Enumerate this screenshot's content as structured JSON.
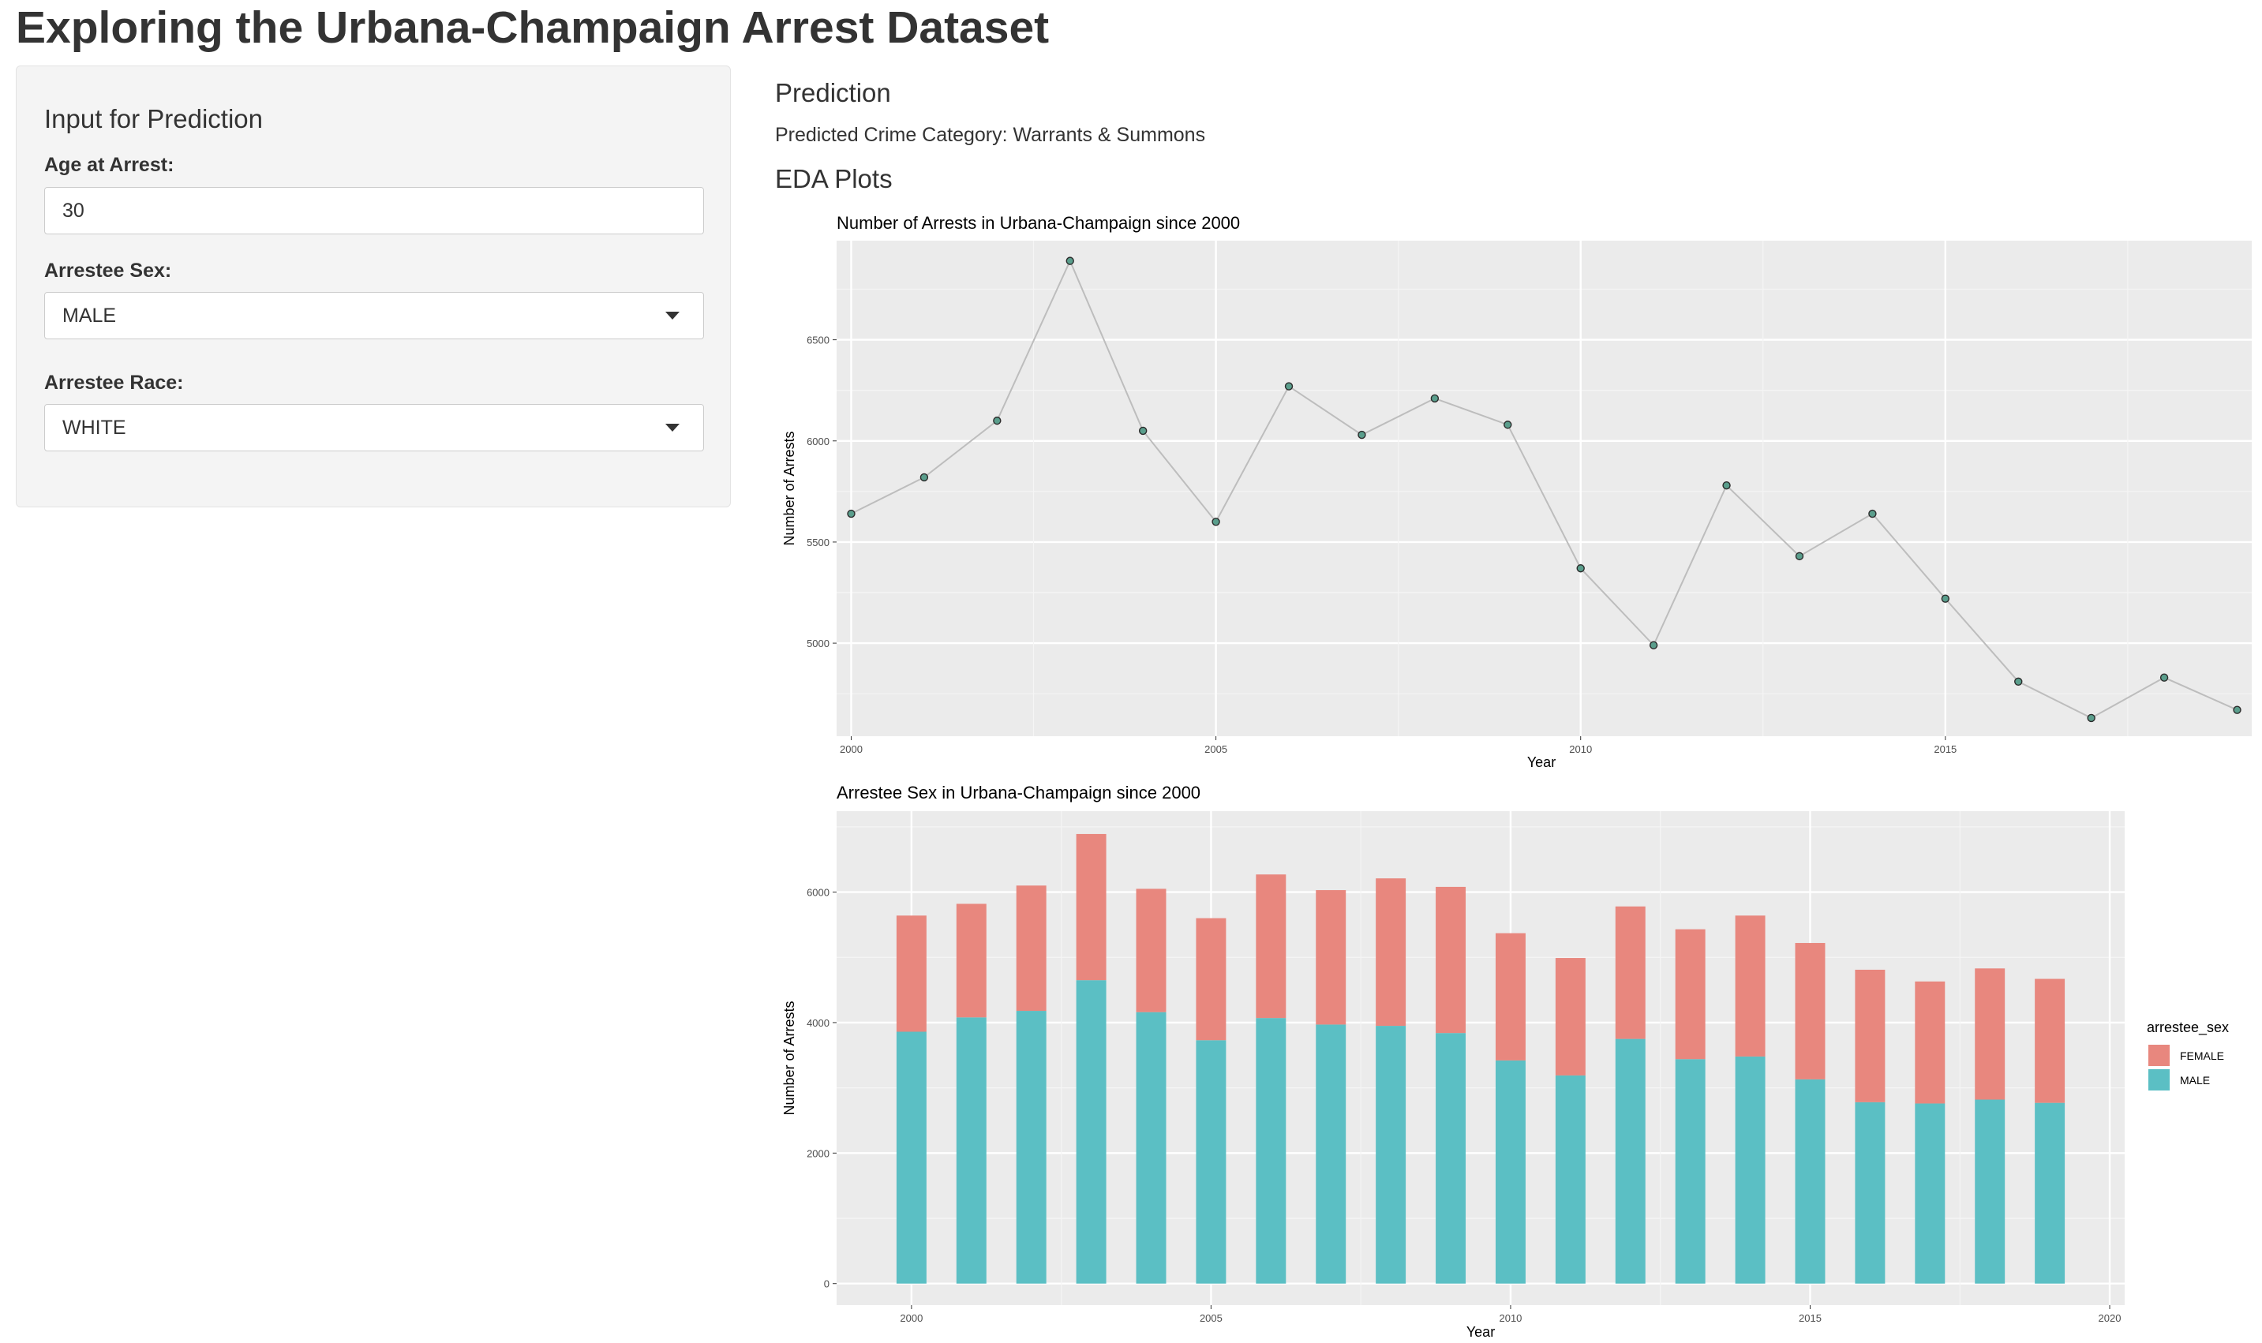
{
  "app": {
    "title": "Exploring the Urbana-Champaign Arrest Dataset"
  },
  "sidebar": {
    "heading": "Input for Prediction",
    "age_label": "Age at Arrest:",
    "age_value": "30",
    "sex_label": "Arrestee Sex:",
    "sex_value": "MALE",
    "race_label": "Arrestee Race:",
    "race_value": "WHITE"
  },
  "main": {
    "prediction_heading": "Prediction",
    "prediction_text": "Predicted Crime Category: Warrants & Summons",
    "eda_heading": "EDA Plots"
  },
  "colors": {
    "female": "#e8877e",
    "male": "#5bbfc4",
    "panel_bg": "#ebebeb",
    "line": "#bdbdbd",
    "point_fill": "#5a9e8c"
  },
  "chart_data": [
    {
      "type": "line",
      "title": "Number of Arrests in Urbana-Champaign since 2000",
      "xlabel": "Year",
      "ylabel": "Number of Arrests",
      "x": [
        2000,
        2001,
        2002,
        2003,
        2004,
        2005,
        2006,
        2007,
        2008,
        2009,
        2010,
        2011,
        2012,
        2013,
        2014,
        2015,
        2016,
        2017,
        2018,
        2019
      ],
      "values": [
        5640,
        5820,
        6100,
        6890,
        6050,
        5600,
        6270,
        6030,
        6210,
        6080,
        5370,
        4990,
        5780,
        5430,
        5640,
        5220,
        4810,
        4630,
        4830,
        4670
      ],
      "xlim": [
        1999.8,
        2019.2
      ],
      "ylim": [
        4540,
        6990
      ],
      "xticks": [
        "2000",
        "2005",
        "2010",
        "2015"
      ],
      "yticks": [
        "5000",
        "5500",
        "6000",
        "6500"
      ],
      "grid": true
    },
    {
      "type": "bar",
      "stacked": true,
      "title": "Arrestee Sex in Urbana-Champaign since 2000",
      "xlabel": "Year",
      "ylabel": "Number of Arrests",
      "legend_title": "arrestee_sex",
      "legend_position": "right",
      "categories": [
        2000,
        2001,
        2002,
        2003,
        2004,
        2005,
        2006,
        2007,
        2008,
        2009,
        2010,
        2011,
        2012,
        2013,
        2014,
        2015,
        2016,
        2017,
        2018,
        2019
      ],
      "series": [
        {
          "name": "MALE",
          "values": [
            3860,
            4080,
            4180,
            4650,
            4160,
            3730,
            4070,
            3970,
            3950,
            3840,
            3420,
            3190,
            3750,
            3440,
            3480,
            3130,
            2780,
            2760,
            2820,
            2770
          ]
        },
        {
          "name": "FEMALE",
          "values": [
            1780,
            1740,
            1920,
            2240,
            1890,
            1870,
            2200,
            2060,
            2260,
            2240,
            1950,
            1800,
            2030,
            1990,
            2160,
            2090,
            2030,
            1870,
            2010,
            1900
          ]
        }
      ],
      "xlim": [
        1998.75,
        2020.25
      ],
      "ylim": [
        -330,
        7240
      ],
      "xticks": [
        "2000",
        "2005",
        "2010",
        "2015",
        "2020"
      ],
      "yticks": [
        "0",
        "2000",
        "4000",
        "6000"
      ],
      "grid": true
    }
  ]
}
